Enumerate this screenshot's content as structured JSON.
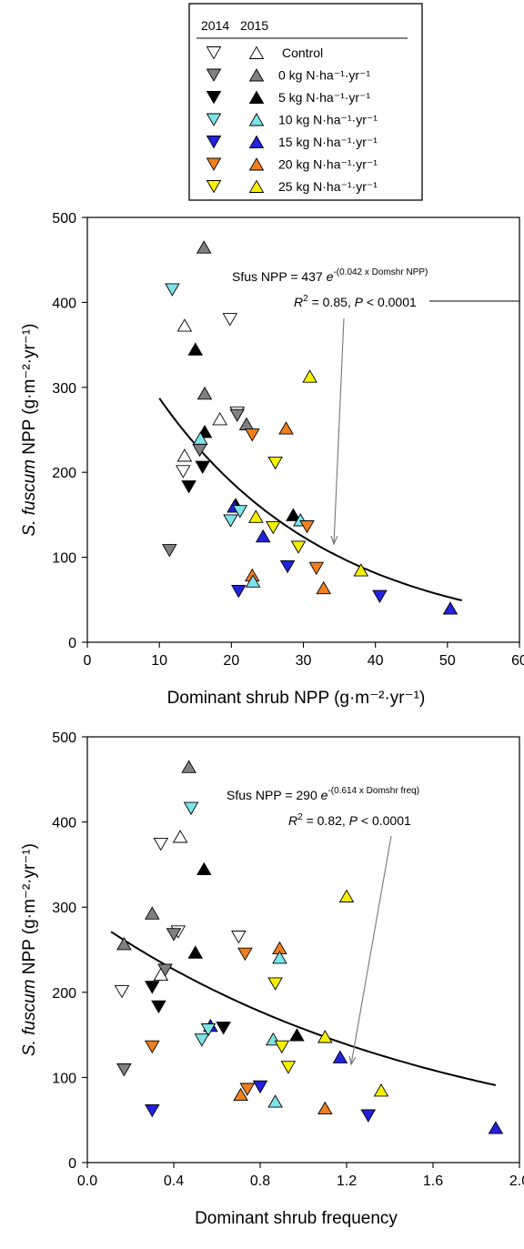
{
  "legend": {
    "year_a": "2014",
    "year_b": "2015",
    "entries": [
      {
        "label": "Control",
        "color": "#ffffff",
        "kind": "control"
      },
      {
        "label": "0 kg N·ha⁻¹·yr⁻¹",
        "color": "#808080"
      },
      {
        "label": "5 kg N·ha⁻¹·yr⁻¹",
        "color": "#000000"
      },
      {
        "label": "10 kg N·ha⁻¹·yr⁻¹",
        "color": "#7fe3ea"
      },
      {
        "label": "15 kg N·ha⁻¹·yr⁻¹",
        "color": "#2222dd"
      },
      {
        "label": "20 kg N·ha⁻¹·yr⁻¹",
        "color": "#f07f1e"
      },
      {
        "label": "25 kg N·ha⁻¹·yr⁻¹",
        "color": "#f7f003"
      }
    ]
  },
  "chart_data": [
    {
      "type": "scatter",
      "xlabel": "Dominant shrub NPP (g·m⁻²·yr⁻¹)",
      "ylabel_pre": "S. fuscum",
      "ylabel_post": " NPP (g·m⁻²·yr⁻¹)",
      "xlim": [
        0,
        60
      ],
      "ylim": [
        0,
        500
      ],
      "xticks": [
        "0",
        "10",
        "20",
        "30",
        "40",
        "50",
        "60"
      ],
      "yticks": [
        "0",
        "100",
        "200",
        "300",
        "400",
        "500"
      ],
      "grid": false,
      "equation": "Sfus NPP = 437 e^-(0.042 x Domshr NPP)",
      "r2": "R² = 0.85, P < 0.0001",
      "fit": {
        "a": 437,
        "b": 0.042,
        "x_from": 10,
        "x_to": 52
      },
      "points": [
        {
          "x": 11.8,
          "y": 415,
          "group": "10",
          "year": 2014
        },
        {
          "x": 13.5,
          "y": 373,
          "group": "Control",
          "year": 2015
        },
        {
          "x": 16.2,
          "y": 465,
          "group": "0",
          "year": 2015
        },
        {
          "x": 19.8,
          "y": 380,
          "group": "Control",
          "year": 2014
        },
        {
          "x": 15.0,
          "y": 345,
          "group": "5",
          "year": 2015
        },
        {
          "x": 16.3,
          "y": 293,
          "group": "0",
          "year": 2015
        },
        {
          "x": 30.9,
          "y": 313,
          "group": "25",
          "year": 2015
        },
        {
          "x": 18.4,
          "y": 263,
          "group": "Control",
          "year": 2015
        },
        {
          "x": 20.8,
          "y": 270,
          "group": "Control",
          "year": 2014
        },
        {
          "x": 20.8,
          "y": 267,
          "group": "0",
          "year": 2014
        },
        {
          "x": 22.1,
          "y": 257,
          "group": "0",
          "year": 2015
        },
        {
          "x": 22.9,
          "y": 244,
          "group": "20",
          "year": 2014
        },
        {
          "x": 27.6,
          "y": 252,
          "group": "20",
          "year": 2015
        },
        {
          "x": 16.3,
          "y": 248,
          "group": "5",
          "year": 2015
        },
        {
          "x": 15.7,
          "y": 240,
          "group": "10",
          "year": 2015
        },
        {
          "x": 15.6,
          "y": 226,
          "group": "0",
          "year": 2014
        },
        {
          "x": 13.5,
          "y": 220,
          "group": "Control",
          "year": 2015
        },
        {
          "x": 13.3,
          "y": 201,
          "group": "Control",
          "year": 2014
        },
        {
          "x": 14.1,
          "y": 183,
          "group": "5",
          "year": 2014
        },
        {
          "x": 16.0,
          "y": 206,
          "group": "5",
          "year": 2014
        },
        {
          "x": 26.1,
          "y": 211,
          "group": "25",
          "year": 2014
        },
        {
          "x": 11.4,
          "y": 108,
          "group": "0",
          "year": 2014
        },
        {
          "x": 20.6,
          "y": 162,
          "group": "5",
          "year": 2015
        },
        {
          "x": 20.4,
          "y": 160,
          "group": "15",
          "year": 2015
        },
        {
          "x": 21.2,
          "y": 154,
          "group": "10",
          "year": 2014
        },
        {
          "x": 19.9,
          "y": 143,
          "group": "10",
          "year": 2014
        },
        {
          "x": 23.4,
          "y": 148,
          "group": "25",
          "year": 2015
        },
        {
          "x": 25.8,
          "y": 135,
          "group": "25",
          "year": 2014
        },
        {
          "x": 28.6,
          "y": 150,
          "group": "5",
          "year": 2015
        },
        {
          "x": 29.6,
          "y": 144,
          "group": "10",
          "year": 2015
        },
        {
          "x": 30.5,
          "y": 136,
          "group": "20",
          "year": 2014
        },
        {
          "x": 24.4,
          "y": 125,
          "group": "15",
          "year": 2015
        },
        {
          "x": 29.3,
          "y": 112,
          "group": "25",
          "year": 2014
        },
        {
          "x": 38.0,
          "y": 85,
          "group": "25",
          "year": 2015
        },
        {
          "x": 27.8,
          "y": 89,
          "group": "15",
          "year": 2014
        },
        {
          "x": 31.8,
          "y": 87,
          "group": "20",
          "year": 2014
        },
        {
          "x": 22.9,
          "y": 79,
          "group": "20",
          "year": 2015
        },
        {
          "x": 23.0,
          "y": 72,
          "group": "10",
          "year": 2015
        },
        {
          "x": 32.8,
          "y": 64,
          "group": "20",
          "year": 2015
        },
        {
          "x": 21.0,
          "y": 60,
          "group": "15",
          "year": 2014
        },
        {
          "x": 40.6,
          "y": 54,
          "group": "15",
          "year": 2014
        },
        {
          "x": 50.4,
          "y": 40,
          "group": "15",
          "year": 2015
        }
      ]
    },
    {
      "type": "scatter",
      "xlabel": "Dominant shrub frequency",
      "ylabel_pre": "S. fuscum",
      "ylabel_post": " NPP (g·m⁻²·yr⁻¹)",
      "xlim": [
        0.0,
        2.0
      ],
      "ylim": [
        0,
        500
      ],
      "xticks": [
        "0.0",
        "0.4",
        "0.8",
        "1.2",
        "1.6",
        "2.0"
      ],
      "yticks": [
        "0",
        "100",
        "200",
        "300",
        "400",
        "500"
      ],
      "grid": false,
      "equation": "Sfus NPP = 290 e^-(0.614 x Domshr freq)",
      "r2": "R² = 0.82, P < 0.0001",
      "fit": {
        "a": 290,
        "b": 0.614,
        "x_from": 0.11,
        "x_to": 1.89
      },
      "points": [
        {
          "x": 0.47,
          "y": 465,
          "group": "0",
          "year": 2015
        },
        {
          "x": 0.48,
          "y": 416,
          "group": "10",
          "year": 2014
        },
        {
          "x": 0.43,
          "y": 383,
          "group": "Control",
          "year": 2015
        },
        {
          "x": 0.34,
          "y": 374,
          "group": "Control",
          "year": 2014
        },
        {
          "x": 0.54,
          "y": 345,
          "group": "5",
          "year": 2015
        },
        {
          "x": 1.2,
          "y": 313,
          "group": "25",
          "year": 2015
        },
        {
          "x": 0.3,
          "y": 293,
          "group": "0",
          "year": 2015
        },
        {
          "x": 0.7,
          "y": 265,
          "group": "Control",
          "year": 2014
        },
        {
          "x": 0.42,
          "y": 271,
          "group": "Control",
          "year": 2014
        },
        {
          "x": 0.4,
          "y": 268,
          "group": "0",
          "year": 2014
        },
        {
          "x": 0.17,
          "y": 257,
          "group": "0",
          "year": 2015
        },
        {
          "x": 0.89,
          "y": 252,
          "group": "20",
          "year": 2015
        },
        {
          "x": 0.5,
          "y": 247,
          "group": "5",
          "year": 2015
        },
        {
          "x": 0.73,
          "y": 245,
          "group": "20",
          "year": 2014
        },
        {
          "x": 0.89,
          "y": 241,
          "group": "10",
          "year": 2015
        },
        {
          "x": 0.36,
          "y": 226,
          "group": "0",
          "year": 2014
        },
        {
          "x": 0.34,
          "y": 221,
          "group": "Control",
          "year": 2015
        },
        {
          "x": 0.87,
          "y": 210,
          "group": "25",
          "year": 2014
        },
        {
          "x": 0.3,
          "y": 206,
          "group": "5",
          "year": 2014
        },
        {
          "x": 0.16,
          "y": 201,
          "group": "Control",
          "year": 2014
        },
        {
          "x": 0.33,
          "y": 183,
          "group": "5",
          "year": 2014
        },
        {
          "x": 0.57,
          "y": 161,
          "group": "15",
          "year": 2015
        },
        {
          "x": 0.56,
          "y": 156,
          "group": "10",
          "year": 2014
        },
        {
          "x": 0.63,
          "y": 158,
          "group": "5",
          "year": 2014
        },
        {
          "x": 0.97,
          "y": 150,
          "group": "5",
          "year": 2015
        },
        {
          "x": 1.1,
          "y": 148,
          "group": "25",
          "year": 2015
        },
        {
          "x": 0.86,
          "y": 145,
          "group": "10",
          "year": 2015
        },
        {
          "x": 0.53,
          "y": 144,
          "group": "10",
          "year": 2014
        },
        {
          "x": 0.3,
          "y": 136,
          "group": "20",
          "year": 2014
        },
        {
          "x": 0.9,
          "y": 136,
          "group": "25",
          "year": 2014
        },
        {
          "x": 1.17,
          "y": 124,
          "group": "15",
          "year": 2015
        },
        {
          "x": 0.93,
          "y": 112,
          "group": "25",
          "year": 2014
        },
        {
          "x": 0.17,
          "y": 109,
          "group": "0",
          "year": 2014
        },
        {
          "x": 0.8,
          "y": 89,
          "group": "15",
          "year": 2014
        },
        {
          "x": 0.74,
          "y": 86,
          "group": "20",
          "year": 2014
        },
        {
          "x": 1.36,
          "y": 85,
          "group": "25",
          "year": 2015
        },
        {
          "x": 0.71,
          "y": 80,
          "group": "20",
          "year": 2015
        },
        {
          "x": 0.87,
          "y": 72,
          "group": "10",
          "year": 2015
        },
        {
          "x": 1.1,
          "y": 64,
          "group": "20",
          "year": 2015
        },
        {
          "x": 0.3,
          "y": 61,
          "group": "15",
          "year": 2014
        },
        {
          "x": 1.3,
          "y": 55,
          "group": "15",
          "year": 2014
        },
        {
          "x": 1.89,
          "y": 41,
          "group": "15",
          "year": 2015
        }
      ]
    }
  ]
}
